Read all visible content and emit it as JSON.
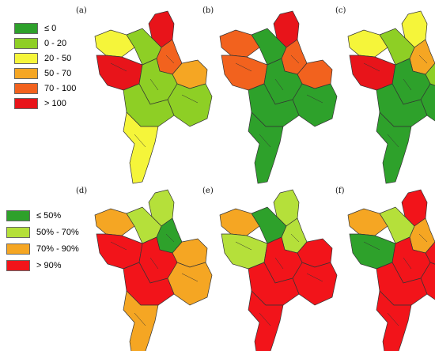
{
  "legend_top": {
    "items": [
      {
        "label": "≤ 0",
        "color": "#2ea12b"
      },
      {
        "label": "0 - 20",
        "color": "#8ecf25"
      },
      {
        "label": "20 - 50",
        "color": "#f5f53a"
      },
      {
        "label": "50 - 70",
        "color": "#f5a623"
      },
      {
        "label": "70 - 100",
        "color": "#f2621e"
      },
      {
        "label": "> 100",
        "color": "#e8141a"
      }
    ]
  },
  "legend_bottom": {
    "items": [
      {
        "label": "≤ 50%",
        "color": "#2ea12b"
      },
      {
        "label": "50% - 70%",
        "color": "#b5e03a"
      },
      {
        "label": "70% - 90%",
        "color": "#f5a623"
      },
      {
        "label": "> 90%",
        "color": "#f2141a"
      }
    ]
  },
  "panels": [
    {
      "label": "(a)",
      "colors": [
        "#e8141a",
        "#f2621e",
        "#f5a623",
        "#8ecf25",
        "#f5f53a",
        "#8ecf25",
        "#e8141a",
        "#8ecf25",
        "#8ecf25",
        "#f5f53a"
      ]
    },
    {
      "label": "(b)",
      "colors": [
        "#e8141a",
        "#f2621e",
        "#f2621e",
        "#2ea12b",
        "#f2621e",
        "#2ea12b",
        "#f2621e",
        "#2ea12b",
        "#2ea12b",
        "#2ea12b"
      ]
    },
    {
      "label": "(c)",
      "colors": [
        "#f5f53a",
        "#f5a623",
        "#8ecf25",
        "#2ea12b",
        "#f5f53a",
        "#8ecf25",
        "#e8141a",
        "#2ea12b",
        "#2ea12b",
        "#2ea12b"
      ]
    },
    {
      "label": "(d)",
      "colors": [
        "#b5e03a",
        "#2ea12b",
        "#f5a623",
        "#f5a623",
        "#f5a623",
        "#b5e03a",
        "#f2141a",
        "#f2141a",
        "#f2141a",
        "#f5a623"
      ]
    },
    {
      "label": "(e)",
      "colors": [
        "#b5e03a",
        "#b5e03a",
        "#f2141a",
        "#f2141a",
        "#f5a623",
        "#2ea12b",
        "#b5e03a",
        "#f2141a",
        "#f2141a",
        "#f2141a"
      ]
    },
    {
      "label": "(f)",
      "colors": [
        "#f2141a",
        "#f5a623",
        "#f2141a",
        "#f2141a",
        "#f5a623",
        "#b5e03a",
        "#2ea12b",
        "#f2141a",
        "#f2141a",
        "#f2141a"
      ]
    }
  ]
}
